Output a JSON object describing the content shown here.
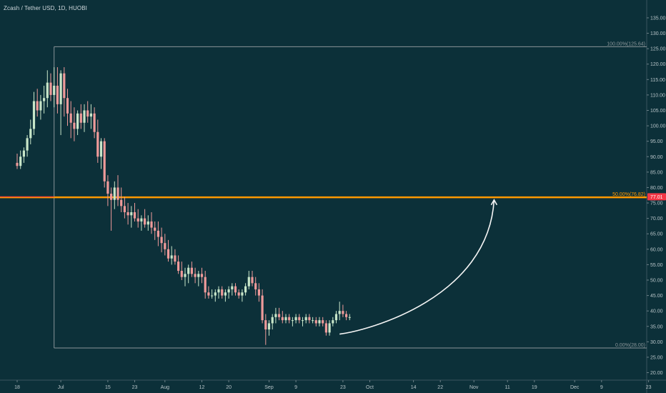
{
  "chart_data": {
    "type": "candlestick",
    "title": "Zcash / Tether USD, 1D, HUOBI",
    "y_ticks": [
      20,
      25,
      30,
      35,
      40,
      45,
      50,
      55,
      60,
      65,
      70,
      75,
      80,
      85,
      90,
      95,
      100,
      105,
      110,
      115,
      120,
      125,
      130,
      135
    ],
    "ylim": [
      18.5,
      138
    ],
    "x_ticks": [
      {
        "label": "18",
        "day": 0
      },
      {
        "label": "Jul",
        "day": 13
      },
      {
        "label": "15",
        "day": 27
      },
      {
        "label": "23",
        "day": 35
      },
      {
        "label": "Aug",
        "day": 44
      },
      {
        "label": "12",
        "day": 55
      },
      {
        "label": "20",
        "day": 63
      },
      {
        "label": "Sep",
        "day": 75
      },
      {
        "label": "9",
        "day": 83
      },
      {
        "label": "23",
        "day": 97
      },
      {
        "label": "Oct",
        "day": 105
      },
      {
        "label": "14",
        "day": 118
      },
      {
        "label": "22",
        "day": 126
      },
      {
        "label": "Nov",
        "day": 136
      },
      {
        "label": "11",
        "day": 146
      },
      {
        "label": "19",
        "day": 154
      },
      {
        "label": "Dec",
        "day": 166
      },
      {
        "label": "9",
        "day": 174
      },
      {
        "label": "23",
        "day": 188
      }
    ],
    "current_price": {
      "value": 77.01,
      "label": "77.01",
      "color": "#f23645"
    },
    "fib_levels": [
      {
        "label": "100.00%(125.64)",
        "value": 125.64,
        "color": "#8a9599"
      },
      {
        "label": "50.00%(76.82)",
        "value": 76.82,
        "color": "#ff9800"
      },
      {
        "label": "0.00%(28.00)",
        "value": 28.0,
        "color": "#8a9599"
      }
    ],
    "fib_start_day": 11,
    "up_color": "#c8e6c9",
    "down_color": "#ef9a9a",
    "candles": [
      [
        88,
        91,
        86,
        87
      ],
      [
        87,
        92,
        86,
        90
      ],
      [
        90,
        93,
        88,
        92
      ],
      [
        92,
        97,
        90,
        96
      ],
      [
        96,
        102,
        94,
        99
      ],
      [
        99,
        111,
        97,
        108
      ],
      [
        108,
        112,
        103,
        105
      ],
      [
        105,
        110,
        102,
        108
      ],
      [
        108,
        113,
        104,
        109
      ],
      [
        109,
        118,
        106,
        114
      ],
      [
        114,
        117,
        108,
        110
      ],
      [
        110,
        119,
        106,
        113
      ],
      [
        113,
        119,
        104,
        107
      ],
      [
        107,
        118,
        97,
        117
      ],
      [
        117,
        119,
        103,
        109
      ],
      [
        109,
        112,
        100,
        104
      ],
      [
        104,
        108,
        96,
        101
      ],
      [
        101,
        106,
        95,
        99
      ],
      [
        99,
        105,
        97,
        104
      ],
      [
        104,
        107,
        99,
        101
      ],
      [
        101,
        107,
        98,
        105
      ],
      [
        105,
        108,
        101,
        103
      ],
      [
        103,
        107,
        99,
        104
      ],
      [
        104,
        106,
        96,
        98
      ],
      [
        98,
        102,
        88,
        90
      ],
      [
        90,
        96,
        86,
        95
      ],
      [
        95,
        96,
        80,
        82
      ],
      [
        82,
        84,
        74,
        78
      ],
      [
        78,
        80,
        66,
        76
      ],
      [
        76,
        82,
        73,
        80
      ],
      [
        80,
        84,
        74,
        76
      ],
      [
        76,
        80,
        72,
        74
      ],
      [
        74,
        77,
        70,
        72
      ],
      [
        72,
        75,
        68,
        71
      ],
      [
        71,
        74,
        67,
        72
      ],
      [
        72,
        75,
        69,
        70
      ],
      [
        70,
        73,
        67,
        69
      ],
      [
        69,
        71,
        66,
        70
      ],
      [
        70,
        73,
        67,
        68
      ],
      [
        68,
        71,
        66,
        69
      ],
      [
        69,
        72,
        65,
        67
      ],
      [
        67,
        69,
        63,
        66
      ],
      [
        66,
        69,
        61,
        64
      ],
      [
        64,
        67,
        59,
        62
      ],
      [
        62,
        65,
        58,
        60
      ],
      [
        60,
        63,
        56,
        57
      ],
      [
        57,
        61,
        55,
        58
      ],
      [
        58,
        60,
        55,
        56
      ],
      [
        56,
        58,
        52,
        53
      ],
      [
        53,
        56,
        50,
        51
      ],
      [
        51,
        54,
        48,
        52
      ],
      [
        52,
        55,
        49,
        54
      ],
      [
        54,
        56,
        51,
        52
      ],
      [
        52,
        54,
        49,
        51
      ],
      [
        51,
        53,
        48,
        52
      ],
      [
        52,
        54,
        49,
        51
      ],
      [
        51,
        53,
        44,
        46
      ],
      [
        46,
        48,
        44,
        45
      ],
      [
        45,
        47,
        44,
        45
      ],
      [
        45,
        47,
        43,
        46
      ],
      [
        46,
        48,
        44,
        47
      ],
      [
        47,
        48,
        44,
        45
      ],
      [
        45,
        47,
        43,
        46
      ],
      [
        46,
        48,
        44,
        47
      ],
      [
        47,
        49,
        45,
        48
      ],
      [
        48,
        49,
        45,
        46
      ],
      [
        46,
        47,
        44,
        45
      ],
      [
        45,
        47,
        43,
        46
      ],
      [
        46,
        49,
        45,
        48
      ],
      [
        48,
        53,
        47,
        51
      ],
      [
        51,
        53,
        48,
        49
      ],
      [
        49,
        51,
        45,
        47
      ],
      [
        47,
        49,
        43,
        45
      ],
      [
        45,
        47,
        36,
        37
      ],
      [
        37,
        39,
        29,
        34
      ],
      [
        34,
        37,
        32,
        36
      ],
      [
        36,
        39,
        34,
        38
      ],
      [
        38,
        41,
        36,
        39
      ],
      [
        39,
        41,
        37,
        38
      ],
      [
        38,
        40,
        36,
        37
      ],
      [
        37,
        39,
        36,
        38
      ],
      [
        38,
        39,
        36,
        37
      ],
      [
        37,
        38,
        35,
        37
      ],
      [
        37,
        39,
        36,
        38
      ],
      [
        38,
        39,
        36,
        37
      ],
      [
        37,
        38,
        35,
        37
      ],
      [
        37,
        39,
        36,
        38
      ],
      [
        38,
        39,
        36,
        37
      ],
      [
        37,
        38,
        36,
        37
      ],
      [
        37,
        38,
        35,
        36
      ],
      [
        36,
        38,
        35,
        37
      ],
      [
        37,
        38,
        35,
        36
      ],
      [
        36,
        37,
        32,
        33
      ],
      [
        33,
        37,
        32,
        36
      ],
      [
        36,
        38,
        35,
        37
      ],
      [
        37,
        40,
        36,
        39
      ],
      [
        39,
        43,
        37,
        40
      ],
      [
        40,
        42,
        38,
        39
      ],
      [
        39,
        40,
        37,
        38
      ],
      [
        38,
        39,
        37,
        38
      ]
    ]
  }
}
